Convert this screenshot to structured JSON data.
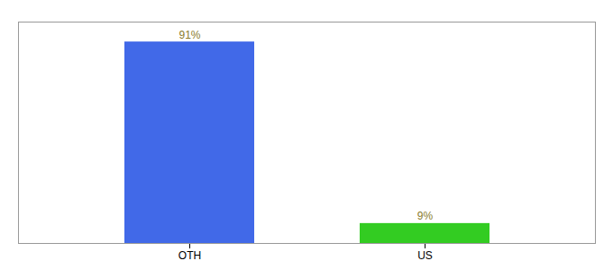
{
  "chart_data": {
    "type": "bar",
    "categories": [
      "OTH",
      "US"
    ],
    "values": [
      91,
      9
    ],
    "value_labels": [
      "91%",
      "9%"
    ],
    "colors": [
      "#4169e8",
      "#33cc22"
    ],
    "ylim": [
      0,
      100
    ],
    "data_labels": true,
    "tick_labels": "x"
  }
}
